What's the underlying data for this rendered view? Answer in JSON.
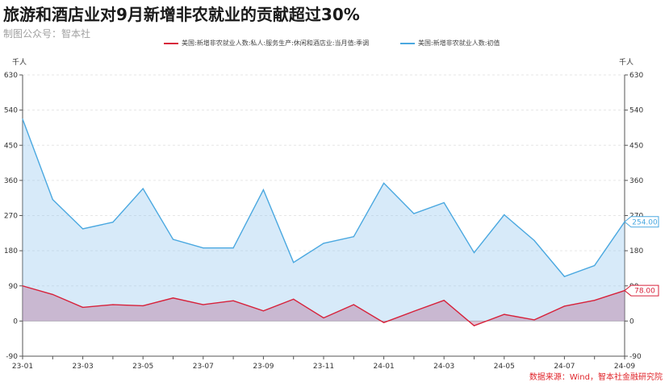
{
  "title": "旅游和酒店业对9月新增非农就业的贡献超过30%",
  "subtitle": "制图公众号：智本社",
  "source": "数据来源：Wind，智本社金融研究院",
  "colors": {
    "series_leisure": "#d7213a",
    "series_total": "#4aa8e0"
  },
  "chart_data": {
    "type": "area",
    "x": [
      "23-01",
      "23-02",
      "23-03",
      "23-04",
      "23-05",
      "23-06",
      "23-07",
      "23-08",
      "23-09",
      "23-10",
      "23-11",
      "23-12",
      "24-01",
      "24-02",
      "24-03",
      "24-04",
      "24-05",
      "24-06",
      "24-07",
      "24-08",
      "24-09"
    ],
    "x_tick_labels": [
      "23-01",
      "23-03",
      "23-05",
      "23-07",
      "23-09",
      "23-11",
      "24-01",
      "24-03",
      "24-05",
      "24-07",
      "24-09"
    ],
    "series": [
      {
        "name": "美国:新增非农就业人数:私人:服务生产:休闲和酒店业:当月值:季调",
        "values": [
          90,
          68,
          35,
          42,
          39,
          59,
          42,
          52,
          26,
          56,
          8,
          42,
          -4,
          25,
          53,
          -12,
          17,
          3,
          38,
          53,
          78
        ],
        "end_label": "78.00"
      },
      {
        "name": "美国:新增非农就业人数:初值",
        "values": [
          517,
          311,
          236,
          253,
          339,
          209,
          187,
          187,
          336,
          150,
          199,
          216,
          353,
          275,
          303,
          175,
          272,
          206,
          114,
          142,
          254
        ],
        "end_label": "254.00"
      }
    ],
    "y_unit_left": "千人",
    "y_unit_right": "千人",
    "ylim": [
      -90,
      630
    ],
    "y_ticks": [
      "630",
      "540",
      "450",
      "360",
      "270",
      "180",
      "90",
      "0",
      "-90"
    ],
    "grid": true,
    "legend": "top-center"
  }
}
